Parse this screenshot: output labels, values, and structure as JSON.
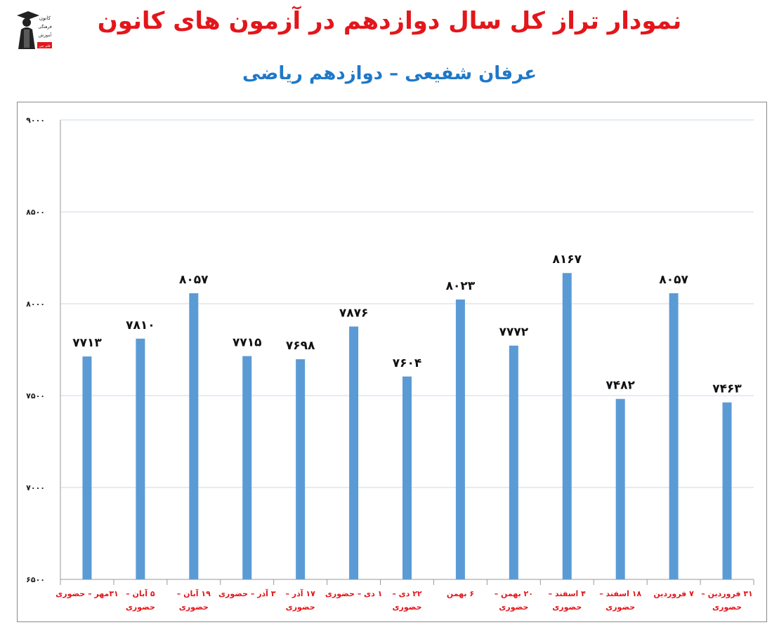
{
  "page": {
    "title": "نمودار تراز کل سال دوازدهم در آزمون های کانون",
    "subtitle": "عرفان شفیعی – دوازدهم ریاضی",
    "title_color": "#e3161b",
    "subtitle_color": "#1f78c8",
    "logo_text": [
      "کانون",
      "فرهنگی",
      "آموزش",
      "قلم چی"
    ]
  },
  "chart_data": {
    "type": "bar",
    "categories": [
      [
        "۳۱مهر – حضوری"
      ],
      [
        "۵ آبان –",
        "حضوری"
      ],
      [
        "۱۹ آبان –",
        "حضوری"
      ],
      [
        "۳ آذر – حضوری"
      ],
      [
        "۱۷ آذر –",
        "حضوری"
      ],
      [
        "۱ دی – حضوری"
      ],
      [
        "۲۲ دی –",
        "حضوری"
      ],
      [
        "۶ بهمن"
      ],
      [
        "۲۰ بهمن –",
        "حضوری"
      ],
      [
        "۴ اسفند –",
        "حضوری"
      ],
      [
        "۱۸ اسفند –",
        "حضوری"
      ],
      [
        "۷ فروردین"
      ],
      [
        "۳۱ فروردین –",
        "حضوری"
      ]
    ],
    "values": [
      7713,
      7810,
      8057,
      7715,
      7698,
      7876,
      7604,
      8023,
      7772,
      8167,
      7482,
      8057,
      7463
    ],
    "value_labels": [
      "۷۷۱۳",
      "۷۸۱۰",
      "۸۰۵۷",
      "۷۷۱۵",
      "۷۶۹۸",
      "۷۸۷۶",
      "۷۶۰۴",
      "۸۰۲۳",
      "۷۷۷۲",
      "۸۱۶۷",
      "۷۴۸۲",
      "۸۰۵۷",
      "۷۴۶۳"
    ],
    "ylim": [
      6500,
      9000
    ],
    "yticks": [
      6500,
      7000,
      7500,
      8000,
      8500,
      9000
    ],
    "ytick_labels": [
      "۶۵۰۰",
      "۷۰۰۰",
      "۷۵۰۰",
      "۸۰۰۰",
      "۸۵۰۰",
      "۹۰۰۰"
    ],
    "grid": true,
    "bar_color": "#5b9bd5",
    "gridline_color": "#c8d9ea",
    "category_label_color": "#e3161b",
    "value_label_color": "#111111",
    "legend": "none"
  }
}
